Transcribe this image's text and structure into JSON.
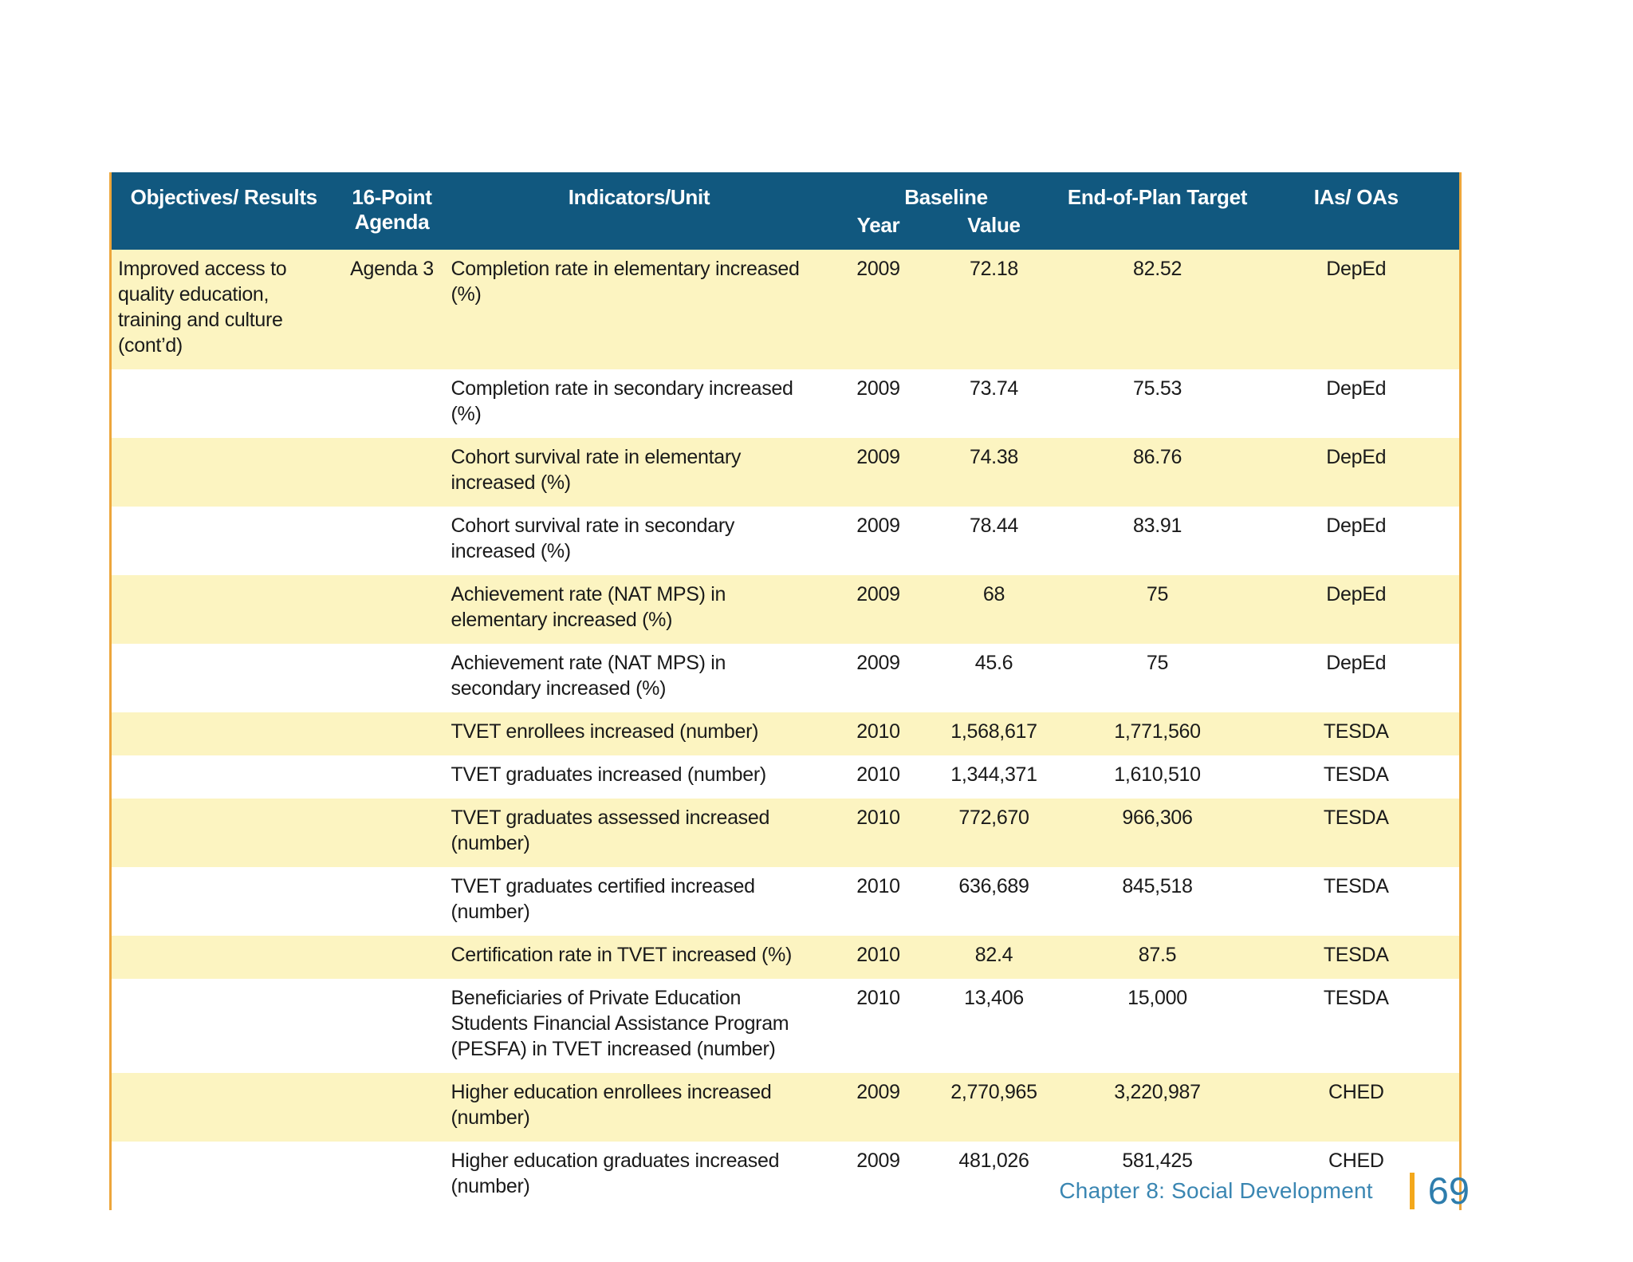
{
  "colors": {
    "header_bg": "#11587f",
    "header_text": "#ffffff",
    "row_shaded": "#fcf4c1",
    "row_plain": "#ffffff",
    "table_border": "#eda63b",
    "body_text": "#1a1a1a",
    "footer_text": "#3a86b2",
    "page_number": "#2e7dad",
    "footer_bar": "#f3a81c"
  },
  "footer": {
    "chapter": "Chapter 8: Social Development",
    "page_number": "69"
  },
  "table": {
    "header": {
      "objectives": "Objectives/ Results",
      "agenda": "16-Point Agenda",
      "indicators": "Indicators/Unit",
      "baseline": "Baseline",
      "year": "Year",
      "value": "Value",
      "target": "End-of-Plan Target",
      "ias": "IAs/ OAs"
    },
    "rows": [
      {
        "objectives": "Improved access to\nquality education,\ntraining and culture\n(cont’d)",
        "agenda": "Agenda 3",
        "indicator": "Completion rate in elementary increased\n(%)",
        "year": "2009",
        "value": "72.18",
        "target": "82.52",
        "ia": "DepEd"
      },
      {
        "objectives": "",
        "agenda": "",
        "indicator": "Completion rate in secondary increased\n(%)",
        "year": "2009",
        "value": "73.74",
        "target": "75.53",
        "ia": "DepEd"
      },
      {
        "objectives": "",
        "agenda": "",
        "indicator": "Cohort survival rate in elementary\nincreased (%)",
        "year": "2009",
        "value": "74.38",
        "target": "86.76",
        "ia": "DepEd"
      },
      {
        "objectives": "",
        "agenda": "",
        "indicator": "Cohort survival rate in secondary\nincreased (%)",
        "year": "2009",
        "value": "78.44",
        "target": "83.91",
        "ia": "DepEd"
      },
      {
        "objectives": "",
        "agenda": "",
        "indicator": "Achievement rate (NAT MPS) in\nelementary increased (%)",
        "year": "2009",
        "value": "68",
        "target": "75",
        "ia": "DepEd"
      },
      {
        "objectives": "",
        "agenda": "",
        "indicator": "Achievement rate (NAT MPS) in\nsecondary increased (%)",
        "year": "2009",
        "value": "45.6",
        "target": "75",
        "ia": "DepEd"
      },
      {
        "objectives": "",
        "agenda": "",
        "indicator": "TVET enrollees increased (number)",
        "year": "2010",
        "value": "1,568,617",
        "target": "1,771,560",
        "ia": "TESDA"
      },
      {
        "objectives": "",
        "agenda": "",
        "indicator": "TVET graduates increased (number)",
        "year": "2010",
        "value": "1,344,371",
        "target": "1,610,510",
        "ia": "TESDA"
      },
      {
        "objectives": "",
        "agenda": "",
        "indicator": "TVET graduates assessed increased\n(number)",
        "year": "2010",
        "value": "772,670",
        "target": "966,306",
        "ia": "TESDA"
      },
      {
        "objectives": "",
        "agenda": "",
        "indicator": "TVET graduates certified increased\n(number)",
        "year": "2010",
        "value": "636,689",
        "target": "845,518",
        "ia": "TESDA"
      },
      {
        "objectives": "",
        "agenda": "",
        "indicator": "Certification rate in TVET increased (%)",
        "year": "2010",
        "value": "82.4",
        "target": "87.5",
        "ia": "TESDA"
      },
      {
        "objectives": "",
        "agenda": "",
        "indicator": "Beneficiaries of Private Education\nStudents Financial Assistance Program\n(PESFA) in TVET increased (number)",
        "year": "2010",
        "value": "13,406",
        "target": "15,000",
        "ia": "TESDA"
      },
      {
        "objectives": "",
        "agenda": "",
        "indicator": "Higher education enrollees increased\n(number)",
        "year": "2009",
        "value": "2,770,965",
        "target": "3,220,987",
        "ia": "CHED"
      },
      {
        "objectives": "",
        "agenda": "",
        "indicator": "Higher education graduates increased\n(number)",
        "year": "2009",
        "value": "481,026",
        "target": "581,425",
        "ia": "CHED"
      }
    ]
  }
}
